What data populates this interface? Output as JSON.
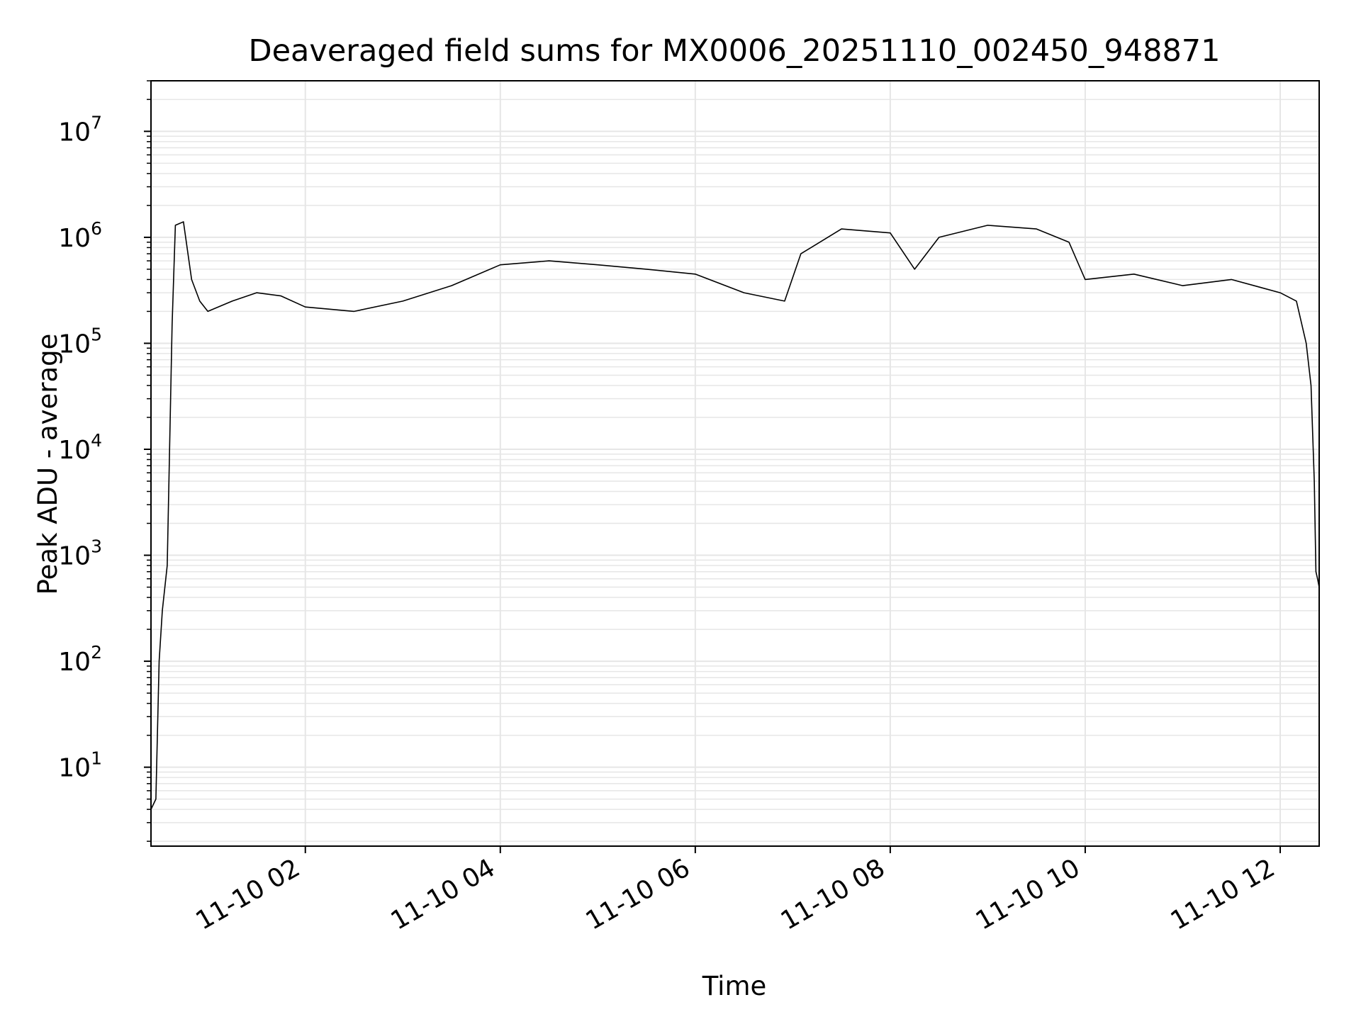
{
  "chart_data": {
    "type": "line",
    "title": "Deaveraged field sums for MX0006_20251110_002450_948871",
    "xlabel": "Time",
    "ylabel": "Peak ADU - average",
    "yscale": "log",
    "ylim": [
      1.8,
      30000000
    ],
    "xlim": [
      "2025-11-10 00:25",
      "2025-11-10 12:24"
    ],
    "grid": true,
    "legend": "none",
    "line_color": "#000000",
    "x_ticks": [
      "11-10 02",
      "11-10 04",
      "11-10 06",
      "11-10 08",
      "11-10 10",
      "11-10 12"
    ],
    "x_tick_times": [
      "2025-11-10 02:00",
      "2025-11-10 04:00",
      "2025-11-10 06:00",
      "2025-11-10 08:00",
      "2025-11-10 10:00",
      "2025-11-10 12:00"
    ],
    "y_ticks": [
      {
        "base": "10",
        "exp": "1",
        "value": 10
      },
      {
        "base": "10",
        "exp": "2",
        "value": 100
      },
      {
        "base": "10",
        "exp": "3",
        "value": 1000
      },
      {
        "base": "10",
        "exp": "4",
        "value": 10000
      },
      {
        "base": "10",
        "exp": "5",
        "value": 100000
      },
      {
        "base": "10",
        "exp": "6",
        "value": 1000000
      },
      {
        "base": "10",
        "exp": "7",
        "value": 10000000
      }
    ],
    "series": [
      {
        "x": [
          "2025-11-10 00:25",
          "2025-11-10 00:28",
          "2025-11-10 00:30",
          "2025-11-10 00:32",
          "2025-11-10 00:35",
          "2025-11-10 00:38",
          "2025-11-10 00:40",
          "2025-11-10 00:45",
          "2025-11-10 00:50",
          "2025-11-10 00:55",
          "2025-11-10 01:00",
          "2025-11-10 01:15",
          "2025-11-10 01:30",
          "2025-11-10 01:45",
          "2025-11-10 02:00",
          "2025-11-10 02:30",
          "2025-11-10 03:00",
          "2025-11-10 03:30",
          "2025-11-10 04:00",
          "2025-11-10 04:30",
          "2025-11-10 05:00",
          "2025-11-10 05:30",
          "2025-11-10 06:00",
          "2025-11-10 06:30",
          "2025-11-10 06:55",
          "2025-11-10 07:05",
          "2025-11-10 07:30",
          "2025-11-10 08:00",
          "2025-11-10 08:15",
          "2025-11-10 08:30",
          "2025-11-10 09:00",
          "2025-11-10 09:30",
          "2025-11-10 09:50",
          "2025-11-10 10:00",
          "2025-11-10 10:30",
          "2025-11-10 11:00",
          "2025-11-10 11:30",
          "2025-11-10 12:00",
          "2025-11-10 12:10",
          "2025-11-10 12:16",
          "2025-11-10 12:19",
          "2025-11-10 12:21",
          "2025-11-10 12:22",
          "2025-11-10 12:23",
          "2025-11-10 12:24"
        ],
        "y": [
          4,
          5,
          100,
          300,
          800,
          150000,
          1300000,
          1400000,
          400000,
          250000,
          200000,
          250000,
          300000,
          280000,
          220000,
          200000,
          250000,
          350000,
          550000,
          600000,
          550000,
          500000,
          450000,
          300000,
          250000,
          700000,
          1200000,
          1100000,
          500000,
          1000000,
          1300000,
          1200000,
          900000,
          400000,
          450000,
          350000,
          400000,
          300000,
          250000,
          100000,
          40000,
          5000,
          700,
          600,
          500
        ]
      }
    ]
  }
}
